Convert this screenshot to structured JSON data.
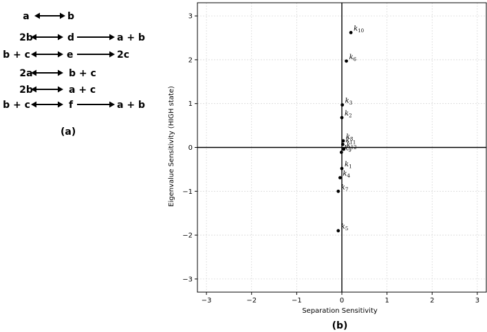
{
  "panel_a": {
    "caption": "(a)",
    "reactions": [
      {
        "left": "a",
        "arrow1": "double",
        "mid": "b",
        "arrow2": null,
        "right": null
      },
      {
        "left": "2b",
        "arrow1": "double",
        "mid": "d",
        "arrow2": "forward",
        "right": "a + b"
      },
      {
        "left": "b + c",
        "arrow1": "double",
        "mid": "e",
        "arrow2": "forward",
        "right": "2c"
      },
      {
        "left": "2a",
        "arrow1": "double",
        "mid": "b + c",
        "arrow2": null,
        "right": null
      },
      {
        "left": "2b",
        "arrow1": "double",
        "mid": "a + c",
        "arrow2": null,
        "right": null
      },
      {
        "left": "b + c",
        "arrow1": "double",
        "mid": "f",
        "arrow2": "forward",
        "right": "a + b"
      }
    ]
  },
  "panel_b": {
    "caption": "(b)"
  },
  "chart_data": {
    "type": "scatter",
    "xlabel": "Separation Sensitivity",
    "ylabel": "Eigenvalue Sensitivity (HIGH state)",
    "xlim": [
      -3.2,
      3.2
    ],
    "ylim": [
      -3.3,
      3.3
    ],
    "xticks": [
      -3,
      -2,
      -1,
      0,
      1,
      2,
      3
    ],
    "yticks": [
      -3,
      -2,
      -1,
      0,
      1,
      2,
      3
    ],
    "xtick_labels": [
      "−3",
      "−2",
      "−1",
      "0",
      "1",
      "2",
      "3"
    ],
    "ytick_labels": [
      "−3",
      "−2",
      "−1",
      "0",
      "1",
      "2",
      "3"
    ],
    "grid": true,
    "points": [
      {
        "label": "k",
        "sub": "10",
        "x": 0.2,
        "y": 2.62
      },
      {
        "label": "k",
        "sub": "6",
        "x": 0.1,
        "y": 1.97
      },
      {
        "label": "k",
        "sub": "3",
        "x": 0.01,
        "y": 0.97
      },
      {
        "label": "k",
        "sub": "2",
        "x": 0.0,
        "y": 0.68
      },
      {
        "label": "k",
        "sub": "8",
        "x": 0.03,
        "y": 0.15
      },
      {
        "label": "k",
        "sub": "11",
        "x": 0.02,
        "y": 0.07
      },
      {
        "label": "k",
        "sub": "12",
        "x": 0.04,
        "y": -0.04
      },
      {
        "label": "k",
        "sub": "9",
        "x": -0.01,
        "y": -0.11
      },
      {
        "label": "k",
        "sub": "1",
        "x": 0.0,
        "y": -0.48
      },
      {
        "label": "k",
        "sub": "4",
        "x": -0.04,
        "y": -0.69
      },
      {
        "label": "k",
        "sub": "7",
        "x": -0.08,
        "y": -1.0
      },
      {
        "label": "k",
        "sub": "5",
        "x": -0.08,
        "y": -1.9
      }
    ]
  }
}
